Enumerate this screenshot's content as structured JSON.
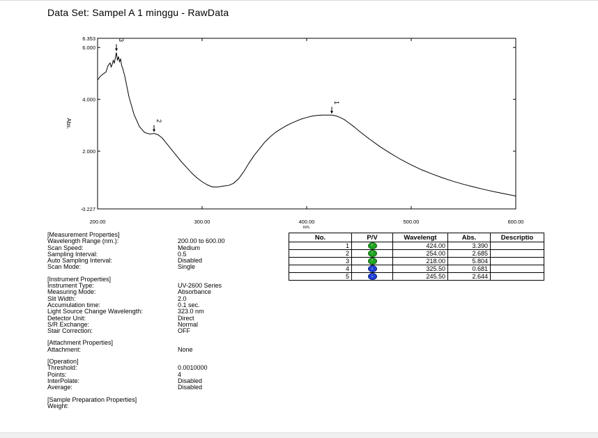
{
  "title": "Data Set: Sampel A 1 minggu - RawData",
  "chart_data": {
    "type": "line",
    "xlabel": "nm.",
    "ylabel": "Abs.",
    "xlim": [
      200,
      600
    ],
    "ylim": [
      -0.227,
      6.353
    ],
    "x_ticks": [
      "200.00",
      "300.00",
      "400.00",
      "500.00",
      "600.00"
    ],
    "y_ticks": [
      {
        "value": -0.227,
        "label": "-0.227"
      },
      {
        "value": 2.0,
        "label": "2.000"
      },
      {
        "value": 4.0,
        "label": "4.000"
      },
      {
        "value": 6.0,
        "label": "6.000"
      },
      {
        "value": 6.353,
        "label": "6.353"
      }
    ],
    "series": [
      {
        "x": [
          200,
          203,
          206,
          208,
          210,
          212,
          213,
          214,
          215,
          216,
          217,
          218,
          219,
          220,
          221,
          222,
          223,
          224,
          226,
          228,
          230,
          235,
          240,
          245,
          250,
          254,
          258,
          262,
          266,
          270,
          275,
          280,
          285,
          290,
          295,
          300,
          305,
          310,
          315,
          320,
          325.5,
          330,
          335,
          340,
          345,
          350,
          355,
          360,
          365,
          370,
          375,
          380,
          385,
          390,
          395,
          400,
          405,
          410,
          415,
          420,
          424,
          428,
          432,
          436,
          440,
          445,
          450,
          460,
          470,
          480,
          490,
          500,
          510,
          520,
          530,
          540,
          550,
          560,
          570,
          580,
          590,
          600
        ],
        "y": [
          4.75,
          4.9,
          5.0,
          5.05,
          5.3,
          5.4,
          5.25,
          5.35,
          5.5,
          5.4,
          5.6,
          5.804,
          5.5,
          5.65,
          5.45,
          5.55,
          5.3,
          5.2,
          4.9,
          4.5,
          4.1,
          3.4,
          2.95,
          2.72,
          2.66,
          2.685,
          2.63,
          2.5,
          2.3,
          2.1,
          1.85,
          1.6,
          1.38,
          1.16,
          0.97,
          0.82,
          0.7,
          0.62,
          0.62,
          0.65,
          0.681,
          0.76,
          0.94,
          1.22,
          1.55,
          1.85,
          2.1,
          2.35,
          2.55,
          2.72,
          2.85,
          2.97,
          3.07,
          3.16,
          3.24,
          3.3,
          3.35,
          3.38,
          3.39,
          3.39,
          3.39,
          3.36,
          3.3,
          3.22,
          3.1,
          2.95,
          2.78,
          2.47,
          2.18,
          1.92,
          1.68,
          1.47,
          1.28,
          1.12,
          0.97,
          0.84,
          0.72,
          0.62,
          0.52,
          0.43,
          0.35,
          0.27
        ]
      }
    ],
    "annotations": [
      {
        "label": "1",
        "x": 424.0,
        "y": 3.39
      },
      {
        "label": "2",
        "x": 254.0,
        "y": 2.685
      },
      {
        "label": "3",
        "x": 218.0,
        "y": 5.804
      }
    ]
  },
  "properties": [
    {
      "header": "[Measurement Properties]",
      "items": [
        {
          "k": "Wavelength Range (nm.):",
          "v": "200.00 to 600.00"
        },
        {
          "k": "Scan Speed:",
          "v": "Medium"
        },
        {
          "k": "Sampling Interval:",
          "v": "0.5"
        },
        {
          "k": "Auto Sampling Interval:",
          "v": "Disabled"
        },
        {
          "k": "Scan Mode:",
          "v": "Single"
        }
      ]
    },
    {
      "header": "[Instrument Properties]",
      "items": [
        {
          "k": "Instrument Type:",
          "v": "UV-2600 Series"
        },
        {
          "k": "Measuring Mode:",
          "v": "Absorbance"
        },
        {
          "k": "Slit Width:",
          "v": "2.0"
        },
        {
          "k": "Accumulation time:",
          "v": "0.1 sec."
        },
        {
          "k": "Light Source Change Wavelength:",
          "v": "323.0 nm"
        },
        {
          "k": "Detector Unit:",
          "v": "Direct"
        },
        {
          "k": "S/R Exchange:",
          "v": "Normal"
        },
        {
          "k": "Stair Correction:",
          "v": "OFF"
        }
      ]
    },
    {
      "header": "[Attachment Properties]",
      "items": [
        {
          "k": "Attachment:",
          "v": "None"
        }
      ]
    },
    {
      "header": "[Operation]",
      "items": [
        {
          "k": "Threshold:",
          "v": "0.0010000"
        },
        {
          "k": "Points:",
          "v": "4"
        },
        {
          "k": "InterPolate:",
          "v": "Disabled"
        },
        {
          "k": "Average:",
          "v": "Disabled"
        }
      ]
    },
    {
      "header": "[Sample Preparation Properties]",
      "items": [
        {
          "k": "Weight:",
          "v": ""
        }
      ]
    }
  ],
  "peak_table": {
    "headers": [
      "No.",
      "P/V",
      "Wavelengt",
      "Abs.",
      "Descriptio"
    ],
    "rows": [
      {
        "no": "1",
        "pv": "peak",
        "wl": "424.00",
        "abs": "3.390",
        "desc": ""
      },
      {
        "no": "2",
        "pv": "peak",
        "wl": "254.00",
        "abs": "2.685",
        "desc": ""
      },
      {
        "no": "3",
        "pv": "peak",
        "wl": "218.00",
        "abs": "5.804",
        "desc": ""
      },
      {
        "no": "4",
        "pv": "valley",
        "wl": "325.50",
        "abs": "0.681",
        "desc": ""
      },
      {
        "no": "5",
        "pv": "valley",
        "wl": "245.50",
        "abs": "2.644",
        "desc": ""
      }
    ]
  },
  "colors": {
    "line": "#000000",
    "peak": "#1fa31f",
    "valley": "#1f3fd6"
  },
  "icons": {
    "peak": "arrow-up-icon",
    "valley": "arrow-down-icon"
  }
}
